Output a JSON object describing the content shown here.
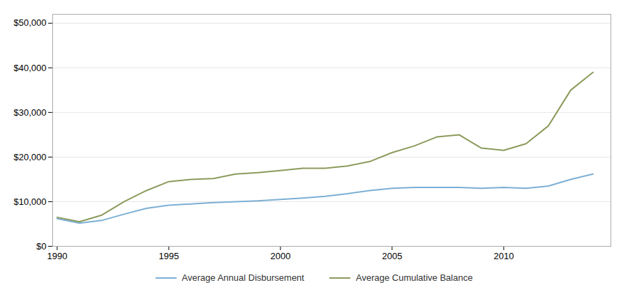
{
  "chart_data": {
    "type": "line",
    "x": [
      1990,
      1991,
      1992,
      1993,
      1994,
      1995,
      1996,
      1997,
      1998,
      1999,
      2000,
      2001,
      2002,
      2003,
      2004,
      2005,
      2006,
      2007,
      2008,
      2009,
      2010,
      2011,
      2012,
      2013,
      2014
    ],
    "series": [
      {
        "name": "Average Annual Disbursement",
        "color": "#7BAFD4",
        "values": [
          6200,
          5200,
          5800,
          7200,
          8500,
          9200,
          9500,
          9800,
          10000,
          10200,
          10500,
          10800,
          11200,
          11800,
          12500,
          13000,
          13200,
          13200,
          13200,
          13000,
          13200,
          13000,
          13500,
          15000,
          16200
        ]
      },
      {
        "name": "Average Cumulative Balance",
        "color": "#8A9A5B",
        "values": [
          6500,
          5500,
          7000,
          10000,
          12500,
          14500,
          15000,
          15200,
          16200,
          16500,
          17000,
          17500,
          17500,
          18000,
          19000,
          21000,
          22500,
          24500,
          25000,
          22000,
          21500,
          23000,
          27000,
          35000,
          39000
        ]
      }
    ],
    "xlim": [
      1989.8,
      2014.8
    ],
    "xticks": [
      1990,
      1995,
      2000,
      2005,
      2010
    ],
    "ylim": [
      0,
      52000
    ],
    "yticks": [
      {
        "value": 0,
        "label": "$0"
      },
      {
        "value": 10000,
        "label": "$10,000"
      },
      {
        "value": 20000,
        "label": "$20,000"
      },
      {
        "value": 30000,
        "label": "$30,000"
      },
      {
        "value": 40000,
        "label": "$40,000"
      },
      {
        "value": 50000,
        "label": "$50,000"
      }
    ],
    "grid": true,
    "legend": "bottom"
  }
}
